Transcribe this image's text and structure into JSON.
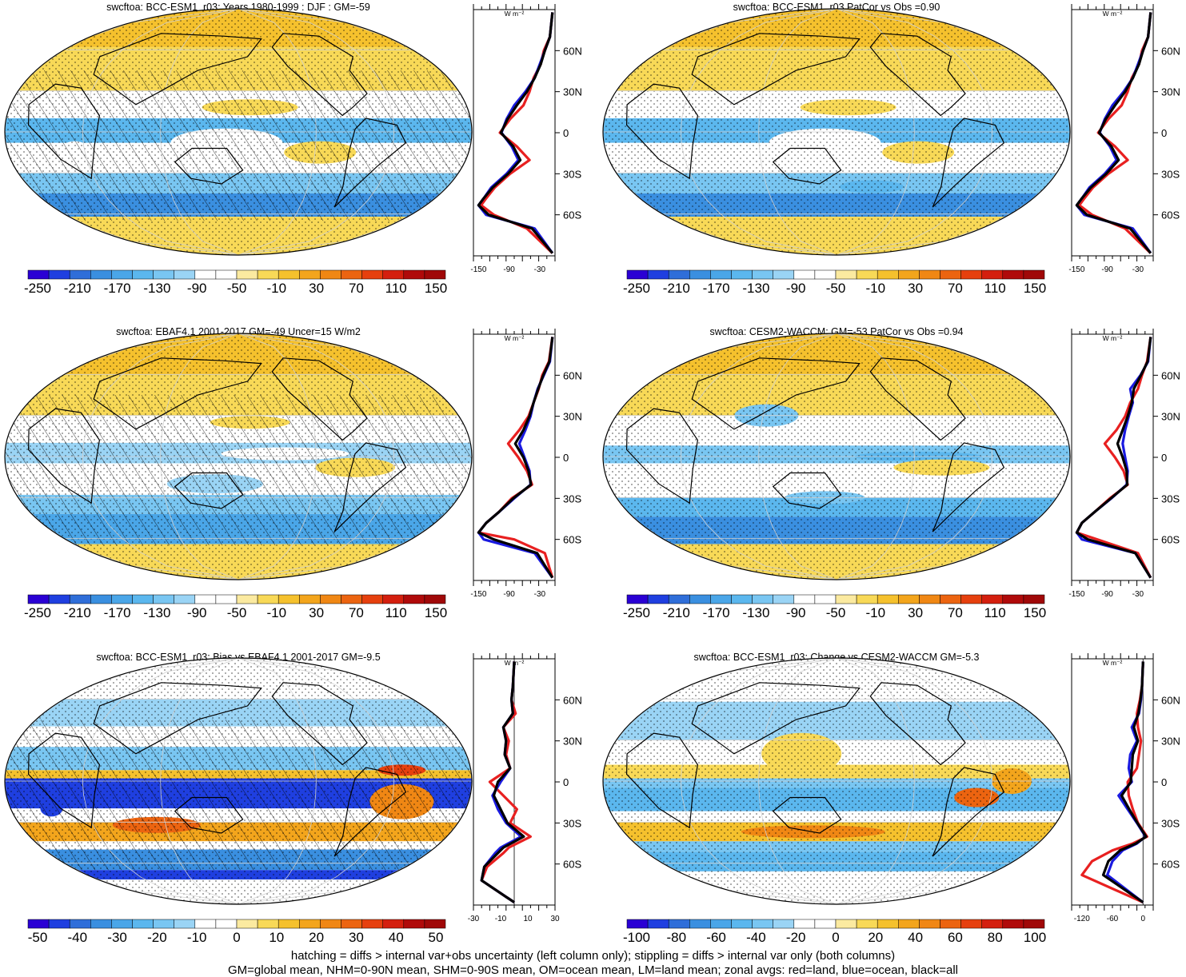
{
  "chart_data": [
    {
      "type": "heatmap",
      "title": "swcftoa: BCC-ESM1_r03: Years 1980-1999 : DJF : GM=-59",
      "colorbar_ticks": [
        "-250",
        "-210",
        "-170",
        "-130",
        "-90",
        "-50",
        "-10",
        "30",
        "70",
        "110",
        "150"
      ],
      "hatching": true,
      "zonal": {
        "units": "W m⁻²",
        "xticks": [
          "-150",
          "-90",
          "-30"
        ],
        "xlim": [
          -160,
          0
        ],
        "yticks": [
          "60N",
          "30N",
          "0",
          "30S",
          "60S"
        ],
        "ylim": [
          -90,
          90
        ],
        "ref_line": null,
        "series": [
          {
            "color": "#e82020",
            "x": [
              -5,
              -10,
              -22,
              -28,
              -42,
              -50,
              -62,
              -88,
              -108,
              -75,
              -50,
              -88,
              -118,
              -135,
              -145,
              -120,
              -55,
              -5
            ],
            "y": [
              88,
              70,
              60,
              50,
              40,
              30,
              20,
              10,
              0,
              -10,
              -20,
              -30,
              -40,
              -48,
              -53,
              -60,
              -70,
              -88
            ]
          },
          {
            "color": "#1a1ae0",
            "x": [
              -5,
              -10,
              -20,
              -30,
              -40,
              -58,
              -80,
              -95,
              -105,
              -85,
              -72,
              -95,
              -125,
              -140,
              -150,
              -135,
              -40,
              -5
            ],
            "y": [
              88,
              70,
              60,
              50,
              40,
              30,
              20,
              10,
              0,
              -10,
              -20,
              -30,
              -40,
              -48,
              -53,
              -60,
              -70,
              -88
            ]
          },
          {
            "color": "#000000",
            "x": [
              -5,
              -10,
              -20,
              -28,
              -40,
              -55,
              -75,
              -93,
              -106,
              -82,
              -68,
              -92,
              -122,
              -140,
              -150,
              -130,
              -45,
              -5
            ],
            "y": [
              88,
              70,
              60,
              50,
              40,
              30,
              20,
              10,
              0,
              -10,
              -20,
              -30,
              -40,
              -48,
              -53,
              -60,
              -70,
              -88
            ]
          }
        ]
      }
    },
    {
      "type": "heatmap",
      "title": "swcftoa: BCC-ESM1_r03 PatCor vs Obs =0.90",
      "colorbar_ticks": [
        "-250",
        "-210",
        "-170",
        "-130",
        "-90",
        "-50",
        "-10",
        "30",
        "70",
        "110",
        "150"
      ],
      "hatching": false,
      "zonal": {
        "units": "W m⁻²",
        "xticks": [
          "-150",
          "-90",
          "-30"
        ],
        "xlim": [
          -160,
          0
        ],
        "yticks": [
          "60N",
          "30N",
          "0",
          "30S",
          "60S"
        ],
        "ylim": [
          -90,
          90
        ],
        "ref_line": null,
        "series": [
          {
            "color": "#e82020",
            "x": [
              -5,
              -10,
              -22,
              -28,
              -42,
              -50,
              -62,
              -88,
              -108,
              -75,
              -50,
              -88,
              -118,
              -135,
              -145,
              -120,
              -55,
              -5
            ],
            "y": [
              88,
              70,
              60,
              50,
              40,
              30,
              20,
              10,
              0,
              -10,
              -20,
              -30,
              -40,
              -48,
              -53,
              -60,
              -70,
              -88
            ]
          },
          {
            "color": "#1a1ae0",
            "x": [
              -5,
              -10,
              -20,
              -30,
              -40,
              -58,
              -80,
              -95,
              -105,
              -85,
              -72,
              -95,
              -125,
              -140,
              -150,
              -135,
              -40,
              -5
            ],
            "y": [
              88,
              70,
              60,
              50,
              40,
              30,
              20,
              10,
              0,
              -10,
              -20,
              -30,
              -40,
              -48,
              -53,
              -60,
              -70,
              -88
            ]
          },
          {
            "color": "#000000",
            "x": [
              -5,
              -10,
              -20,
              -28,
              -40,
              -55,
              -75,
              -93,
              -106,
              -82,
              -68,
              -92,
              -122,
              -140,
              -150,
              -130,
              -45,
              -5
            ],
            "y": [
              88,
              70,
              60,
              50,
              40,
              30,
              20,
              10,
              0,
              -10,
              -20,
              -30,
              -40,
              -48,
              -53,
              -60,
              -70,
              -88
            ]
          }
        ]
      }
    },
    {
      "type": "heatmap",
      "title": "swcftoa: EBAF4.1 2001-2017 GM=-49 Uncer=15 W/m2",
      "colorbar_ticks": [
        "-250",
        "-210",
        "-170",
        "-130",
        "-90",
        "-50",
        "-10",
        "30",
        "70",
        "110",
        "150"
      ],
      "hatching": true,
      "zonal": {
        "units": "W m⁻²",
        "xticks": [
          "-150",
          "-90",
          "-30"
        ],
        "xlim": [
          -160,
          0
        ],
        "yticks": [
          "60N",
          "30N",
          "0",
          "30S",
          "60S"
        ],
        "ylim": [
          -90,
          90
        ],
        "ref_line": null,
        "series": [
          {
            "color": "#e82020",
            "x": [
              -5,
              -12,
              -25,
              -32,
              -42,
              -52,
              -70,
              -92,
              -72,
              -55,
              -45,
              -85,
              -110,
              -135,
              -150,
              -80,
              -20,
              -5
            ],
            "y": [
              88,
              70,
              60,
              50,
              40,
              30,
              20,
              10,
              0,
              -10,
              -20,
              -30,
              -40,
              -48,
              -55,
              -60,
              -70,
              -88
            ]
          },
          {
            "color": "#1a1ae0",
            "x": [
              -5,
              -10,
              -22,
              -34,
              -42,
              -48,
              -58,
              -70,
              -60,
              -50,
              -48,
              -80,
              -110,
              -135,
              -150,
              -140,
              -40,
              -5
            ],
            "y": [
              88,
              70,
              60,
              50,
              40,
              30,
              20,
              10,
              0,
              -10,
              -20,
              -30,
              -40,
              -48,
              -55,
              -60,
              -70,
              -88
            ]
          },
          {
            "color": "#000000",
            "x": [
              -5,
              -11,
              -23,
              -33,
              -42,
              -50,
              -62,
              -78,
              -62,
              -52,
              -47,
              -82,
              -110,
              -135,
              -150,
              -120,
              -35,
              -5
            ],
            "y": [
              88,
              70,
              60,
              50,
              40,
              30,
              20,
              10,
              0,
              -10,
              -20,
              -30,
              -40,
              -48,
              -55,
              -60,
              -70,
              -88
            ]
          }
        ]
      }
    },
    {
      "type": "heatmap",
      "title": "swcftoa: CESM2-WACCM: GM=-53 PatCor vs Obs =0.94",
      "colorbar_ticks": [
        "-250",
        "-210",
        "-170",
        "-130",
        "-90",
        "-50",
        "-10",
        "30",
        "70",
        "110",
        "150"
      ],
      "hatching": false,
      "zonal": {
        "units": "W m⁻²",
        "xticks": [
          "-150",
          "-90",
          "-30"
        ],
        "xlim": [
          -160,
          0
        ],
        "yticks": [
          "60N",
          "30N",
          "0",
          "30S",
          "60S"
        ],
        "ylim": [
          -90,
          90
        ],
        "ref_line": null,
        "series": [
          {
            "color": "#e82020",
            "x": [
              -5,
              -12,
              -22,
              -30,
              -45,
              -55,
              -72,
              -95,
              -75,
              -58,
              -50,
              -85,
              -115,
              -140,
              -150,
              -110,
              -30,
              -5
            ],
            "y": [
              88,
              70,
              60,
              50,
              40,
              30,
              20,
              10,
              0,
              -10,
              -20,
              -30,
              -40,
              -48,
              -55,
              -60,
              -70,
              -88
            ]
          },
          {
            "color": "#1a1ae0",
            "x": [
              -5,
              -10,
              -25,
              -45,
              -40,
              -48,
              -55,
              -60,
              -55,
              -50,
              -52,
              -82,
              -115,
              -140,
              -150,
              -140,
              -35,
              -5
            ],
            "y": [
              88,
              70,
              60,
              50,
              40,
              30,
              20,
              10,
              0,
              -10,
              -20,
              -30,
              -40,
              -48,
              -55,
              -60,
              -70,
              -88
            ]
          },
          {
            "color": "#000000",
            "x": [
              -5,
              -11,
              -24,
              -38,
              -42,
              -50,
              -60,
              -70,
              -60,
              -52,
              -51,
              -83,
              -115,
              -140,
              -150,
              -128,
              -35,
              -5
            ],
            "y": [
              88,
              70,
              60,
              50,
              40,
              30,
              20,
              10,
              0,
              -10,
              -20,
              -30,
              -40,
              -48,
              -55,
              -60,
              -70,
              -88
            ]
          }
        ]
      }
    },
    {
      "type": "heatmap",
      "title": "swcftoa: BCC-ESM1_r03: Bias vs EBAF4.1 2001-2017 GM=-9.5",
      "colorbar_ticks": [
        "-50",
        "-40",
        "-30",
        "-20",
        "-10",
        "0",
        "10",
        "20",
        "30",
        "40",
        "50"
      ],
      "hatching": true,
      "zonal": {
        "units": "W m⁻²",
        "xticks": [
          "-30",
          "-10",
          "10",
          "30"
        ],
        "xlim": [
          -30,
          30
        ],
        "yticks": [
          "60N",
          "30N",
          "0",
          "30S",
          "60S"
        ],
        "ylim": [
          -90,
          90
        ],
        "ref_line": 0,
        "series": [
          {
            "color": "#e82020",
            "x": [
              0,
              -1,
              -2,
              1,
              -8,
              -4,
              -6,
              -3,
              -18,
              -8,
              2,
              -3,
              12,
              -4,
              -8,
              -20,
              -24,
              0
            ],
            "y": [
              88,
              70,
              60,
              50,
              40,
              30,
              20,
              10,
              0,
              -10,
              -20,
              -30,
              -40,
              -48,
              -52,
              -62,
              -72,
              -88
            ]
          },
          {
            "color": "#1a1ae0",
            "x": [
              0,
              -1,
              -2,
              -1,
              -8,
              -6,
              -7,
              -3,
              -10,
              -16,
              -12,
              -6,
              5,
              -10,
              -14,
              -22,
              -24,
              0
            ],
            "y": [
              88,
              70,
              60,
              50,
              40,
              30,
              20,
              10,
              0,
              -10,
              -20,
              -30,
              -40,
              -48,
              -52,
              -62,
              -72,
              -88
            ]
          },
          {
            "color": "#000000",
            "x": [
              0,
              -1,
              -2,
              -1,
              -8,
              -6,
              -7,
              -3,
              -12,
              -15,
              -10,
              -5,
              7,
              -8,
              -12,
              -22,
              -24,
              0
            ],
            "y": [
              88,
              70,
              60,
              50,
              40,
              30,
              20,
              10,
              0,
              -10,
              -20,
              -30,
              -40,
              -48,
              -52,
              -62,
              -72,
              -88
            ]
          }
        ]
      }
    },
    {
      "type": "heatmap",
      "title": "swcftoa: BCC-ESM1_r03: Change vs CESM2-WACCM GM=-5.3",
      "colorbar_ticks": [
        "-100",
        "-80",
        "-60",
        "-40",
        "-20",
        "0",
        "20",
        "40",
        "60",
        "80",
        "100"
      ],
      "hatching": false,
      "zonal": {
        "units": "W m⁻²",
        "xticks": [
          "-120",
          "-60",
          "0"
        ],
        "xlim": [
          -140,
          20
        ],
        "yticks": [
          "60N",
          "30N",
          "0",
          "30S",
          "60S"
        ],
        "ylim": [
          -90,
          90
        ],
        "ref_line": 0,
        "series": [
          {
            "color": "#e82020",
            "x": [
              0,
              -2,
              -6,
              -12,
              -10,
              -4,
              -8,
              -12,
              -30,
              -28,
              -20,
              -10,
              8,
              -20,
              -60,
              -100,
              -120,
              0
            ],
            "y": [
              88,
              70,
              60,
              50,
              40,
              30,
              20,
              10,
              0,
              -10,
              -20,
              -30,
              -40,
              -45,
              -50,
              -58,
              -68,
              -88
            ]
          },
          {
            "color": "#1a1ae0",
            "x": [
              0,
              -2,
              -4,
              -8,
              -22,
              -12,
              -25,
              -28,
              -22,
              -48,
              -30,
              -12,
              5,
              -12,
              -40,
              -60,
              -70,
              0
            ],
            "y": [
              88,
              70,
              60,
              50,
              40,
              30,
              20,
              10,
              0,
              -10,
              -20,
              -30,
              -40,
              -45,
              -50,
              -58,
              -68,
              -88
            ]
          },
          {
            "color": "#000000",
            "x": [
              0,
              -2,
              -5,
              -9,
              -18,
              -10,
              -20,
              -22,
              -24,
              -42,
              -27,
              -11,
              6,
              -14,
              -45,
              -68,
              -78,
              0
            ],
            "y": [
              88,
              70,
              60,
              50,
              40,
              30,
              20,
              10,
              0,
              -10,
              -20,
              -30,
              -40,
              -45,
              -50,
              -58,
              -68,
              -88
            ]
          }
        ]
      }
    }
  ],
  "colors": {
    "negative": [
      "#2a00d4",
      "#1f3fe0",
      "#2f6ed9",
      "#3a8fe0",
      "#4aa6e8",
      "#5bb7ee",
      "#79c6f2",
      "#9ad4f5"
    ],
    "white": "#ffffff",
    "positive": [
      "#fbeaa0",
      "#f8d957",
      "#f5c12d",
      "#f3a51c",
      "#f08714",
      "#ec6410",
      "#e6400e",
      "#d41f0e",
      "#b00a0a"
    ],
    "coast": "#000000",
    "grid": "#d0d0d0"
  },
  "footer": {
    "line1": "hatching = diffs > internal var+obs uncertainty (left column only); stippling = diffs > internal var only (both columns)",
    "line2": "GM=global mean, NHM=0-90N mean, SHM=0-90S mean, OM=ocean mean, LM=land mean; zonal avgs: red=land, blue=ocean, black=all"
  }
}
